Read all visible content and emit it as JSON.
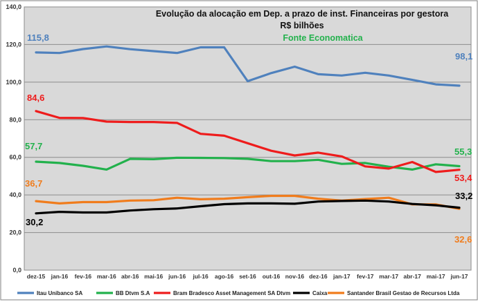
{
  "chart_data": {
    "type": "line",
    "title": "Evolução da alocação  em Dep. a prazo de inst. Financeiras por gestora",
    "subtitle": "R$ bilhões",
    "source": "Fonte Economatica",
    "ylim": [
      0,
      140
    ],
    "ytick_labels": [
      "0,0",
      "20,0",
      "40,0",
      "60,0",
      "80,0",
      "100,0",
      "120,0",
      "140,0"
    ],
    "categories": [
      "dez-15",
      "jan-16",
      "fev-16",
      "mar-16",
      "abr-16",
      "mai-16",
      "jun-16",
      "jul-16",
      "ago-16",
      "set-16",
      "out-16",
      "nov-16",
      "dez-16",
      "jan-17",
      "fev-17",
      "mar-17",
      "abr-17",
      "mai-17",
      "jun-17"
    ],
    "grid": true,
    "legend_position": "bottom",
    "series": [
      {
        "name": "Itau Unibanco SA",
        "color": "#4f81bd",
        "values": [
          115.8,
          115.5,
          117.6,
          119.0,
          117.5,
          116.5,
          115.5,
          118.5,
          118.5,
          100.5,
          104.8,
          108.2,
          104.2,
          103.5,
          105.0,
          103.5,
          101.2,
          98.8,
          98.1
        ],
        "first_label": "115,8",
        "last_label": "98,1"
      },
      {
        "name": "BB Dtvm S.A",
        "color": "#22b14c",
        "values": [
          57.7,
          57.0,
          55.5,
          53.5,
          59.2,
          59.0,
          59.8,
          59.7,
          59.6,
          59.2,
          58.0,
          58.0,
          58.7,
          56.5,
          57.0,
          55.0,
          53.5,
          56.3,
          55.3
        ],
        "first_label": "57,7",
        "last_label": "55,3"
      },
      {
        "name": "Bram Bradesco Asset Management SA Dtvm",
        "color": "#ee1c1c",
        "values": [
          84.6,
          81.0,
          80.9,
          79.0,
          78.8,
          78.8,
          78.3,
          72.5,
          71.5,
          67.5,
          63.5,
          61.0,
          62.5,
          60.5,
          55.2,
          54.0,
          57.5,
          52.2,
          53.4
        ],
        "first_label": "84,6",
        "last_label": "53,4"
      },
      {
        "name": "Caixa",
        "color": "#000000",
        "values": [
          30.2,
          31.0,
          30.7,
          30.7,
          31.7,
          32.4,
          32.8,
          34.0,
          35.1,
          35.5,
          35.5,
          35.3,
          36.5,
          36.8,
          37.0,
          36.5,
          35.2,
          34.5,
          33.2
        ],
        "first_label": "30,2",
        "last_label": "33,2"
      },
      {
        "name": "Santander Brasil Gestao de Recursos Ltda",
        "color": "#f07c1c",
        "values": [
          36.7,
          35.5,
          36.2,
          36.2,
          37.0,
          37.2,
          38.5,
          37.7,
          38.0,
          38.8,
          39.5,
          39.5,
          38.0,
          37.0,
          37.8,
          38.5,
          35.0,
          35.0,
          32.6
        ],
        "first_label": "36,7",
        "last_label": "32,6"
      }
    ]
  }
}
